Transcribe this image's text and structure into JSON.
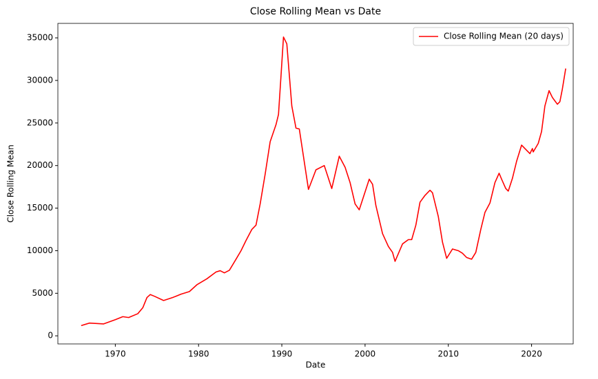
{
  "chart_data": {
    "type": "line",
    "title": "Close Rolling Mean vs Date",
    "xlabel": "Date",
    "ylabel": "Close Rolling Mean",
    "x": [
      1965.9,
      1966.9,
      1968.6,
      1970.0,
      1970.9,
      1971.6,
      1972.7,
      1973.3,
      1973.8,
      1974.2,
      1974.7,
      1975.8,
      1976.9,
      1977.9,
      1978.9,
      1979.8,
      1981.0,
      1982.1,
      1982.6,
      1983.1,
      1983.7,
      1984.5,
      1985.1,
      1985.7,
      1986.4,
      1986.9,
      1987.4,
      1988.0,
      1988.6,
      1989.3,
      1989.6,
      1989.9,
      1990.2,
      1990.6,
      1991.2,
      1991.7,
      1992.1,
      1993.2,
      1994.1,
      1995.1,
      1996.0,
      1996.9,
      1997.6,
      1998.2,
      1998.8,
      1999.3,
      2000.5,
      2000.9,
      2001.3,
      2002.1,
      2002.8,
      2003.3,
      2003.6,
      2004.5,
      2005.2,
      2005.6,
      2006.1,
      2006.6,
      2007.2,
      2007.8,
      2008.1,
      2008.8,
      2009.3,
      2009.8,
      2010.5,
      2011.2,
      2011.7,
      2012.2,
      2012.8,
      2013.3,
      2013.9,
      2014.4,
      2015.0,
      2015.6,
      2016.1,
      2016.4,
      2016.9,
      2017.2,
      2017.7,
      2018.2,
      2018.8,
      2019.3,
      2019.8,
      2020.1,
      2020.2,
      2020.8,
      2021.2,
      2021.6,
      2022.1,
      2022.5,
      2022.8,
      2023.1,
      2023.4,
      2023.7,
      2024.1
    ],
    "series": [
      {
        "name": "Close Rolling Mean (20 days)",
        "color": "#ff0000",
        "values": [
          1200,
          1500,
          1400,
          1900,
          2250,
          2150,
          2600,
          3300,
          4500,
          4850,
          4650,
          4150,
          4500,
          4900,
          5200,
          6000,
          6700,
          7500,
          7650,
          7400,
          7700,
          9000,
          10000,
          11200,
          12500,
          13000,
          15500,
          19000,
          22800,
          24800,
          26000,
          30500,
          35100,
          34300,
          27000,
          24400,
          24300,
          17200,
          19500,
          20000,
          17300,
          21100,
          19800,
          18000,
          15500,
          14800,
          18400,
          17800,
          15300,
          12000,
          10500,
          9800,
          8750,
          10800,
          11300,
          11300,
          13000,
          15700,
          16500,
          17100,
          16800,
          14000,
          11000,
          9100,
          10200,
          10000,
          9700,
          9200,
          9000,
          9800,
          12500,
          14500,
          15600,
          18000,
          19100,
          18400,
          17300,
          17000,
          18500,
          20500,
          22400,
          21900,
          21400,
          22000,
          21600,
          22600,
          24000,
          27000,
          28800,
          28000,
          27600,
          27200,
          27500,
          29000,
          31400
        ]
      }
    ],
    "xlim": [
      1963.1,
      2025.0
    ],
    "xticks": [
      1970,
      1980,
      1990,
      2000,
      2010,
      2020
    ],
    "ylim": [
      -950,
      36700
    ],
    "yticks": [
      0,
      5000,
      10000,
      15000,
      20000,
      25000,
      30000,
      35000
    ],
    "legend": "upper right",
    "grid": false
  }
}
